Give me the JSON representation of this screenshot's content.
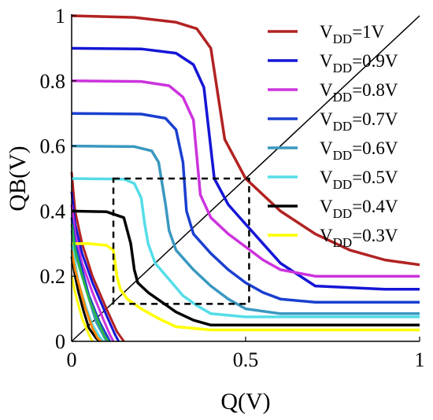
{
  "chart_data": {
    "type": "line",
    "xlabel": "Q(V)",
    "ylabel": "QB(V)",
    "xlim": [
      0,
      1
    ],
    "ylim": [
      0,
      1
    ],
    "x_ticks": [
      "0",
      "0.5",
      "1"
    ],
    "y_ticks": [
      "0",
      "0.2",
      "0.4",
      "0.6",
      "0.8",
      "1"
    ],
    "grid": false,
    "legend_position": "right",
    "series": [
      {
        "name": "VDD=1V",
        "legend_main": "V",
        "legend_sub": "DD",
        "legend_rest": "=1V",
        "color": "#b22222",
        "curve": {
          "x": [
            0,
            0.18,
            0.3,
            0.36,
            0.4,
            0.44,
            0.5,
            0.6,
            0.7,
            0.8,
            0.9,
            1.0
          ],
          "y": [
            1.0,
            0.995,
            0.98,
            0.96,
            0.9,
            0.62,
            0.5,
            0.4,
            0.33,
            0.28,
            0.25,
            0.235
          ]
        },
        "mirror": {
          "x": [
            0,
            0.01,
            0.03,
            0.06,
            0.1,
            0.13,
            0.15
          ],
          "y": [
            0.52,
            0.4,
            0.3,
            0.2,
            0.1,
            0.03,
            0.0
          ]
        }
      },
      {
        "name": "VDD=0.9V",
        "legend_main": "V",
        "legend_sub": "DD",
        "legend_rest": "=0.9V",
        "color": "#1515d6",
        "curve": {
          "x": [
            0,
            0.2,
            0.3,
            0.35,
            0.38,
            0.41,
            0.45,
            0.5,
            0.55,
            0.6,
            0.7,
            0.9,
            1.0
          ],
          "y": [
            0.9,
            0.898,
            0.885,
            0.85,
            0.78,
            0.5,
            0.42,
            0.36,
            0.3,
            0.24,
            0.17,
            0.16,
            0.16
          ]
        },
        "mirror": {
          "x": [
            0,
            0.01,
            0.03,
            0.06,
            0.1,
            0.125,
            0.135
          ],
          "y": [
            0.46,
            0.36,
            0.27,
            0.18,
            0.08,
            0.02,
            0.0
          ]
        }
      },
      {
        "name": "VDD=0.8V",
        "legend_main": "V",
        "legend_sub": "DD",
        "legend_rest": "=0.8V",
        "color": "#cc33dd",
        "curve": {
          "x": [
            0,
            0.2,
            0.28,
            0.32,
            0.35,
            0.37,
            0.4,
            0.45,
            0.5,
            0.55,
            0.6,
            0.7,
            1.0
          ],
          "y": [
            0.8,
            0.798,
            0.785,
            0.75,
            0.68,
            0.45,
            0.38,
            0.33,
            0.29,
            0.25,
            0.22,
            0.2,
            0.2
          ]
        },
        "mirror": {
          "x": [
            0,
            0.01,
            0.03,
            0.06,
            0.09,
            0.11,
            0.12
          ],
          "y": [
            0.42,
            0.33,
            0.24,
            0.15,
            0.07,
            0.02,
            0.0
          ]
        }
      },
      {
        "name": "VDD=0.7V",
        "legend_main": "V",
        "legend_sub": "DD",
        "legend_rest": "=0.7V",
        "color": "#1a3fd0",
        "curve": {
          "x": [
            0,
            0.2,
            0.27,
            0.3,
            0.32,
            0.33,
            0.35,
            0.4,
            0.45,
            0.5,
            0.55,
            0.6,
            0.7,
            1.0
          ],
          "y": [
            0.7,
            0.698,
            0.685,
            0.65,
            0.55,
            0.4,
            0.33,
            0.27,
            0.22,
            0.18,
            0.15,
            0.13,
            0.12,
            0.12
          ]
        },
        "mirror": {
          "x": [
            0,
            0.01,
            0.03,
            0.05,
            0.08,
            0.1,
            0.11
          ],
          "y": [
            0.38,
            0.3,
            0.22,
            0.14,
            0.06,
            0.02,
            0.0
          ]
        }
      },
      {
        "name": "VDD=0.6V",
        "legend_main": "V",
        "legend_sub": "DD",
        "legend_rest": "=0.6V",
        "color": "#3a98c0",
        "curve": {
          "x": [
            0,
            0.18,
            0.23,
            0.25,
            0.27,
            0.28,
            0.3,
            0.35,
            0.4,
            0.45,
            0.5,
            0.6,
            1.0
          ],
          "y": [
            0.6,
            0.598,
            0.585,
            0.55,
            0.42,
            0.34,
            0.28,
            0.22,
            0.17,
            0.13,
            0.1,
            0.085,
            0.085
          ]
        },
        "mirror": {
          "x": [
            0,
            0.01,
            0.03,
            0.05,
            0.07,
            0.09,
            0.1
          ],
          "y": [
            0.34,
            0.27,
            0.2,
            0.13,
            0.06,
            0.02,
            0.0
          ]
        }
      },
      {
        "name": "VDD=0.5V",
        "legend_main": "V",
        "legend_sub": "DD",
        "legend_rest": "=0.5V",
        "color": "#55dde8",
        "curve": {
          "x": [
            0,
            0.15,
            0.18,
            0.2,
            0.21,
            0.22,
            0.24,
            0.28,
            0.32,
            0.36,
            0.4,
            0.5,
            1.0
          ],
          "y": [
            0.5,
            0.498,
            0.485,
            0.44,
            0.36,
            0.3,
            0.24,
            0.19,
            0.14,
            0.11,
            0.085,
            0.075,
            0.075
          ]
        },
        "mirror": {
          "x": [
            0,
            0.01,
            0.02,
            0.04,
            0.06,
            0.08,
            0.09
          ],
          "y": [
            0.3,
            0.24,
            0.18,
            0.11,
            0.05,
            0.015,
            0.0
          ]
        }
      },
      {
        "name": "VDD=0.4V",
        "legend_main": "V",
        "legend_sub": "DD",
        "legend_rest": "=0.4V",
        "color": "#000000",
        "curve": {
          "x": [
            0,
            0.1,
            0.15,
            0.17,
            0.18,
            0.19,
            0.22,
            0.26,
            0.3,
            0.35,
            0.4,
            0.5,
            1.0
          ],
          "y": [
            0.4,
            0.398,
            0.38,
            0.3,
            0.22,
            0.18,
            0.15,
            0.12,
            0.09,
            0.065,
            0.05,
            0.05,
            0.05
          ]
        },
        "mirror": {
          "x": [
            0,
            0.01,
            0.02,
            0.035,
            0.05,
            0.07,
            0.08
          ],
          "y": [
            0.26,
            0.2,
            0.15,
            0.09,
            0.04,
            0.01,
            0.0
          ]
        }
      },
      {
        "name": "VDD=0.3V",
        "legend_main": "V",
        "legend_sub": "DD",
        "legend_rest": "=0.3V",
        "color": "#ffff00",
        "curve": {
          "x": [
            0,
            0.05,
            0.1,
            0.12,
            0.13,
            0.14,
            0.16,
            0.2,
            0.25,
            0.3,
            0.4,
            1.0
          ],
          "y": [
            0.3,
            0.3,
            0.295,
            0.28,
            0.2,
            0.16,
            0.13,
            0.1,
            0.07,
            0.045,
            0.035,
            0.035
          ]
        },
        "mirror": {
          "x": [
            0,
            0.01,
            0.02,
            0.03,
            0.05,
            0.06
          ],
          "y": [
            0.2,
            0.15,
            0.11,
            0.07,
            0.02,
            0.0
          ]
        }
      },
      {
        "name": "",
        "color": "#2ab64a",
        "mirror_only": true,
        "mirror": {
          "x": [
            0,
            0.01,
            0.03,
            0.05,
            0.08,
            0.095,
            0.105
          ],
          "y": [
            0.36,
            0.28,
            0.2,
            0.13,
            0.05,
            0.015,
            0.0
          ]
        }
      },
      {
        "name": "",
        "color": "#ff8800",
        "mirror_only": true,
        "mirror": {
          "x": [
            0,
            0.01,
            0.025,
            0.04,
            0.06,
            0.075,
            0.085
          ],
          "y": [
            0.28,
            0.22,
            0.16,
            0.1,
            0.04,
            0.01,
            0.0
          ]
        }
      }
    ],
    "diagonal": {
      "x": [
        0,
        1
      ],
      "y": [
        0,
        1
      ],
      "color": "#000000"
    },
    "butterfly_box": {
      "x": [
        0.12,
        0.51
      ],
      "y": [
        0.115,
        0.5
      ],
      "style": "dashed",
      "color": "#000000"
    }
  }
}
